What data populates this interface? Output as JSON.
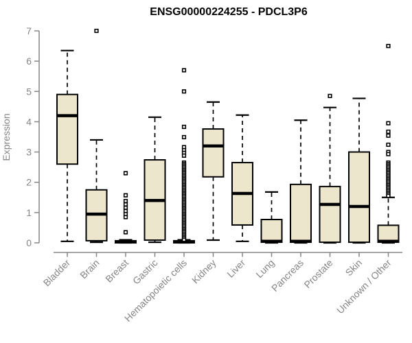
{
  "chart_data": {
    "type": "boxplot",
    "title": "ENSG00000224255 - PDCL3P6",
    "ylabel": "Expression",
    "xlabel": "",
    "ylim": [
      0,
      7
    ],
    "yticks": [
      0,
      1,
      2,
      3,
      4,
      5,
      6,
      7
    ],
    "grid": false,
    "legend": "none",
    "colors": {
      "box_fill": "#ece6cc",
      "box_stroke": "#000000",
      "median": "#000000",
      "whisker": "#000000",
      "outlier_stroke": "#000000",
      "outlier_fill": "#ffffff",
      "axis": "#858585",
      "tick_label": "#858585",
      "title": "#000000",
      "background": "#ffffff"
    },
    "categories": [
      "Bladder",
      "Brain",
      "Breast",
      "Gastric",
      "Hematopoietic cells",
      "Kidney",
      "Liver",
      "Lung",
      "Pancreas",
      "Prostate",
      "Skin",
      "Unknown / Other"
    ],
    "boxes": [
      {
        "label": "Bladder",
        "whisker_low": 0.05,
        "q1": 2.6,
        "median": 4.2,
        "q3": 4.9,
        "whisker_high": 6.35,
        "outliers": []
      },
      {
        "label": "Brain",
        "whisker_low": 0.02,
        "q1": 0.07,
        "median": 0.95,
        "q3": 1.75,
        "whisker_high": 3.4,
        "outliers": [
          7.0
        ]
      },
      {
        "label": "Breast",
        "whisker_low": 0.0,
        "q1": 0.0,
        "median": 0.03,
        "q3": 0.07,
        "whisker_high": 0.1,
        "outliers": [
          2.3,
          1.57,
          1.38,
          1.27,
          1.16,
          1.05,
          0.95,
          0.85,
          0.35
        ]
      },
      {
        "label": "Gastric",
        "whisker_low": 0.02,
        "q1": 0.09,
        "median": 1.4,
        "q3": 2.74,
        "whisker_high": 4.15,
        "outliers": []
      },
      {
        "label": "Hematopoietic cells",
        "whisker_low": 0.0,
        "q1": 0.0,
        "median": 0.03,
        "q3": 0.07,
        "whisker_high": 0.1,
        "outliers": [
          5.7,
          5.0,
          3.83,
          3.49,
          3.16,
          3.06,
          2.97,
          2.88,
          2.65,
          2.6,
          2.55,
          2.5,
          2.45,
          2.4,
          2.35,
          2.3,
          2.25,
          2.2,
          2.15,
          2.1,
          2.05,
          2.0,
          1.95,
          1.9,
          1.85,
          1.8,
          1.75,
          1.7,
          1.65,
          1.6,
          1.55,
          1.5,
          1.45,
          1.4,
          1.35,
          1.3,
          1.25,
          1.2,
          1.15,
          1.1,
          1.05,
          1.0,
          0.95,
          0.9,
          0.85,
          0.8,
          0.75,
          0.7,
          0.65,
          0.6,
          0.55,
          0.5,
          0.45,
          0.4,
          0.35,
          0.3,
          0.25,
          0.2,
          0.15,
          0.1
        ]
      },
      {
        "label": "Kidney",
        "whisker_low": 0.09,
        "q1": 2.18,
        "median": 3.2,
        "q3": 3.76,
        "whisker_high": 4.65,
        "outliers": []
      },
      {
        "label": "Liver",
        "whisker_low": 0.05,
        "q1": 0.59,
        "median": 1.63,
        "q3": 2.65,
        "whisker_high": 4.22,
        "outliers": []
      },
      {
        "label": "Lung",
        "whisker_low": 0.0,
        "q1": 0.02,
        "median": 0.05,
        "q3": 0.77,
        "whisker_high": 1.68,
        "outliers": []
      },
      {
        "label": "Pancreas",
        "whisker_low": 0.0,
        "q1": 0.02,
        "median": 0.05,
        "q3": 1.93,
        "whisker_high": 4.05,
        "outliers": []
      },
      {
        "label": "Prostate",
        "whisker_low": 0.0,
        "q1": 0.02,
        "median": 1.27,
        "q3": 1.86,
        "whisker_high": 4.47,
        "outliers": [
          4.85
        ]
      },
      {
        "label": "Skin",
        "whisker_low": 0.0,
        "q1": 0.02,
        "median": 1.2,
        "q3": 3.0,
        "whisker_high": 4.77,
        "outliers": []
      },
      {
        "label": "Unknown / Other",
        "whisker_low": 0.0,
        "q1": 0.02,
        "median": 0.05,
        "q3": 0.58,
        "whisker_high": 1.5,
        "outliers": [
          6.5,
          3.95,
          3.67,
          3.54,
          3.24,
          3.0,
          2.93,
          2.65,
          2.6,
          2.55,
          2.5,
          2.45,
          2.4,
          2.35,
          2.3,
          2.25,
          2.2,
          2.15,
          2.1,
          2.05,
          2.0,
          1.95,
          1.9,
          1.85,
          1.8,
          1.75,
          1.7,
          1.65,
          1.6,
          1.55
        ]
      }
    ]
  }
}
